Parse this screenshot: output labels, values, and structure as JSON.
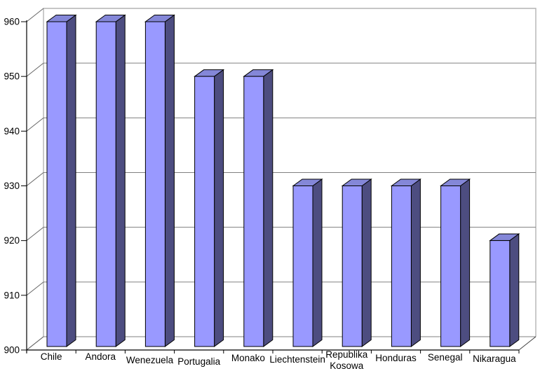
{
  "chart_data": {
    "type": "bar",
    "style": "3d-column",
    "title": "",
    "xlabel": "",
    "ylabel": "",
    "categories": [
      "Chile",
      "Andora",
      "Wenezuela",
      "Portugalia",
      "Monako",
      "Liechtenstein",
      "Republika Kosowa",
      "Honduras",
      "Senegal",
      "Nikaragua"
    ],
    "values": [
      960,
      960,
      960,
      950,
      950,
      930,
      930,
      930,
      930,
      920
    ],
    "ylim": [
      900,
      960
    ],
    "ytick_interval": 10,
    "ytick_labels": [
      "900",
      "910",
      "920",
      "930",
      "940",
      "950",
      "960"
    ],
    "grid": true,
    "legend": "none",
    "colors": {
      "background": "#FFFFFF",
      "bar_front": "#9999FF",
      "bar_top": "#8487D8",
      "bar_side": "#4D4D80",
      "bar_outline": "#000000",
      "gridline": "#808080",
      "wall_border": "#B3B3B3",
      "connector": "#666666",
      "depth_edge": "#404040",
      "axis": "#000000",
      "text": "#000000"
    }
  }
}
